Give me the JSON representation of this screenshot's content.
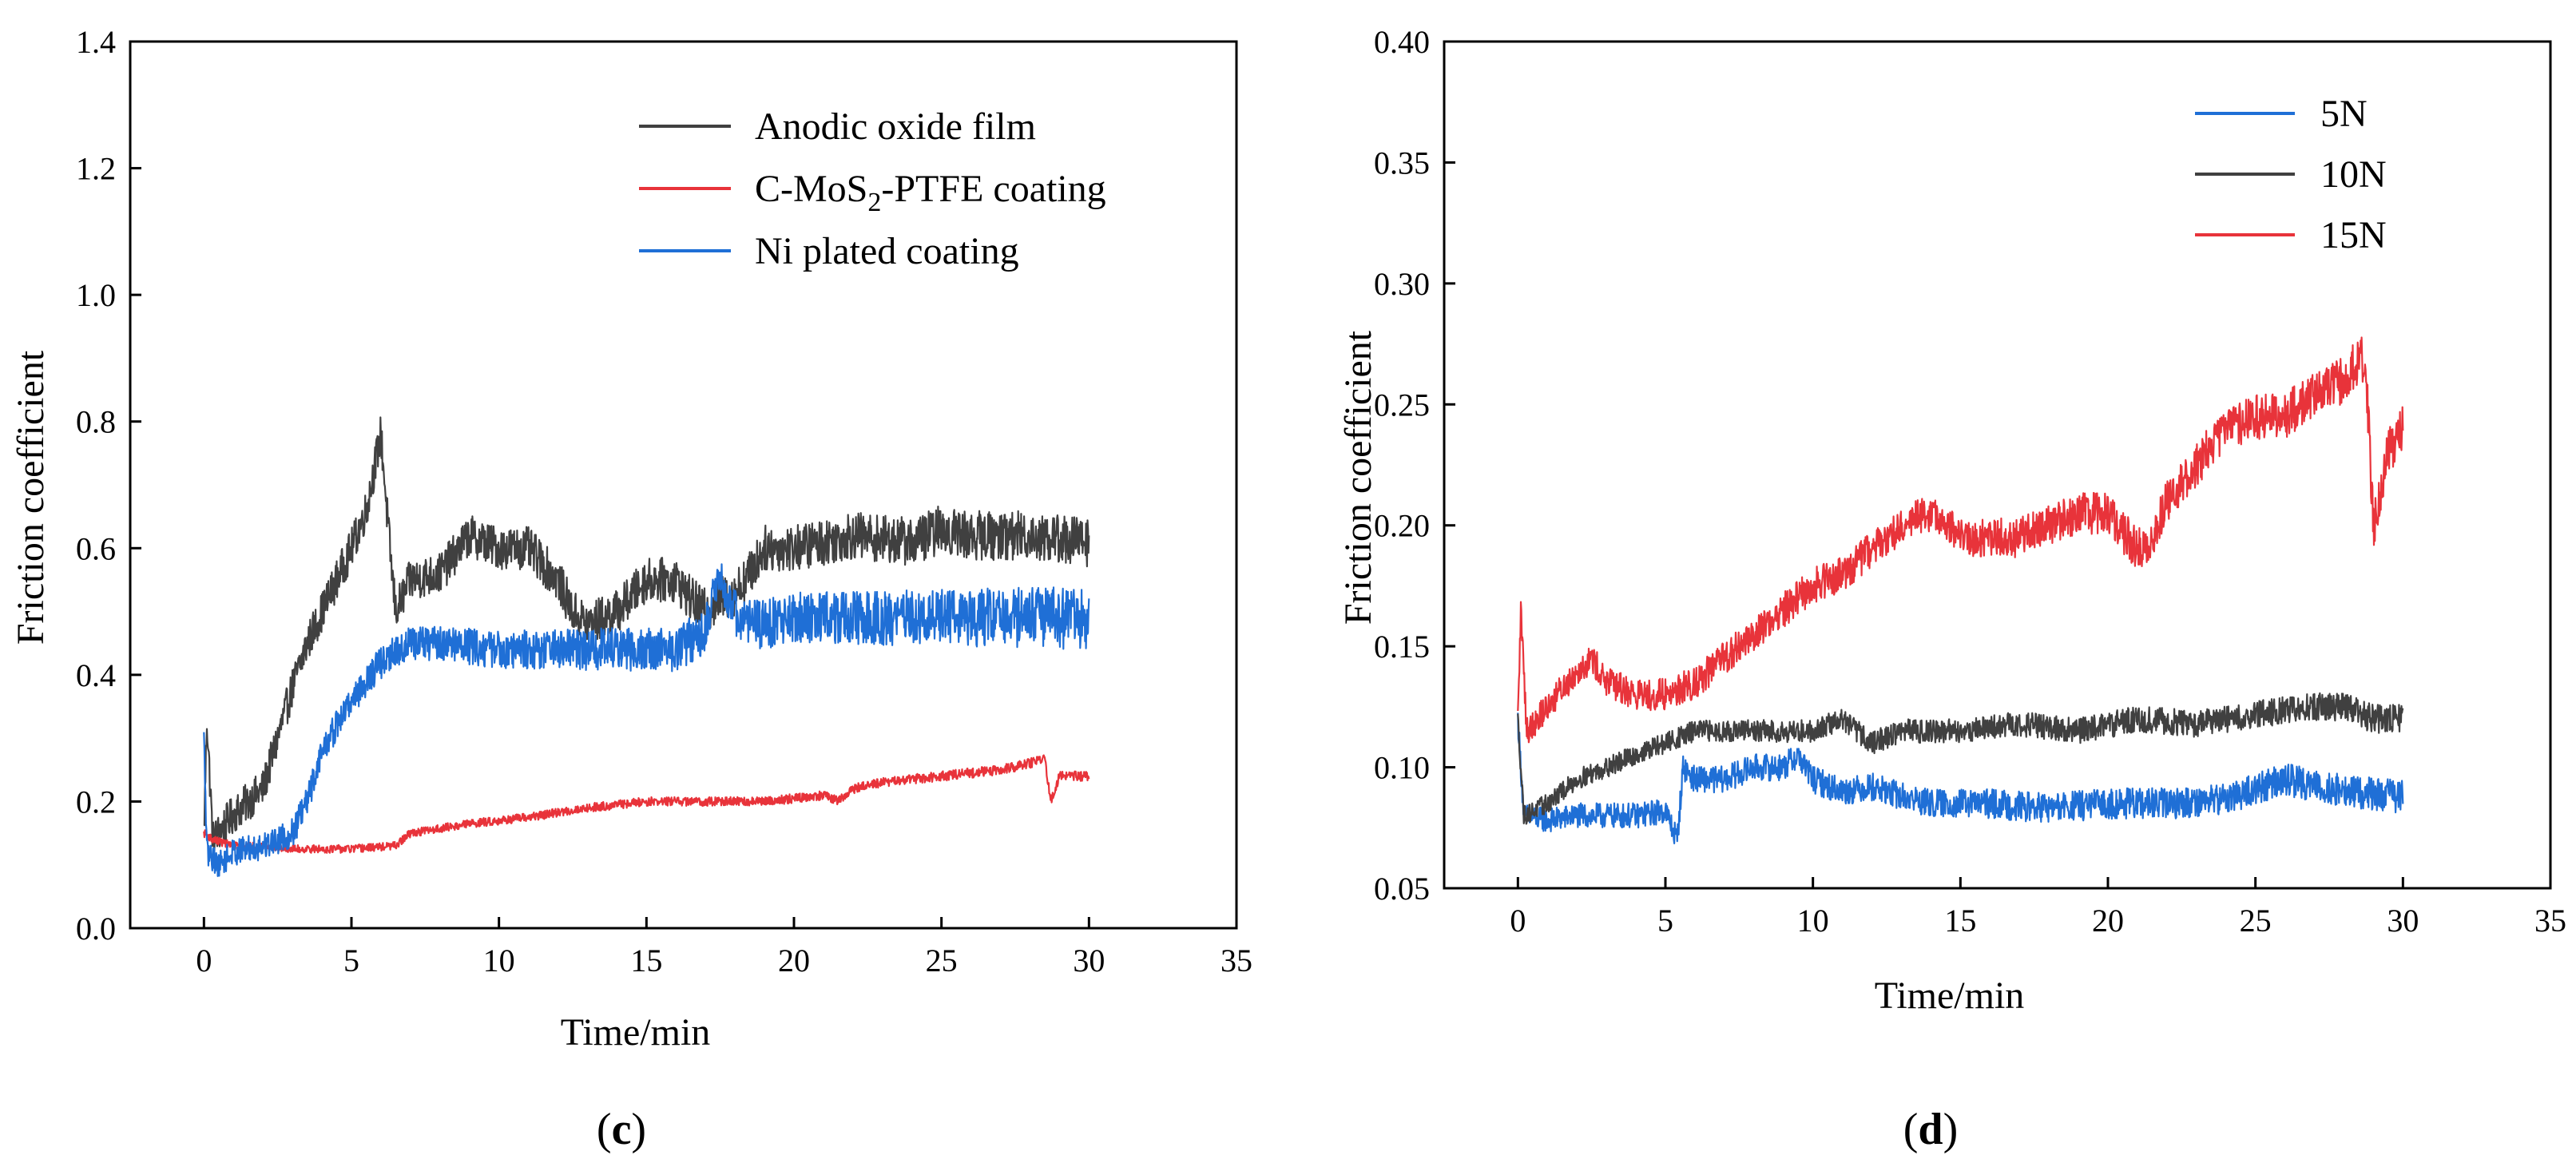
{
  "chart_data": [
    {
      "type": "line",
      "panel_label": {
        "open": "(",
        "letter": "c",
        "close": ")"
      },
      "xlabel": "Time/min",
      "ylabel": "Friction coefficient",
      "xlim": [
        -2.5,
        35
      ],
      "ylim": [
        0,
        1.4
      ],
      "xticks": [
        0,
        5,
        10,
        15,
        20,
        25,
        30,
        35
      ],
      "yticks": [
        0.0,
        0.2,
        0.4,
        0.6,
        0.8,
        1.0,
        1.2,
        1.4
      ],
      "xtick_labels": [
        "0",
        "5",
        "10",
        "15",
        "20",
        "25",
        "30",
        "35"
      ],
      "ytick_labels": [
        "0.0",
        "0.2",
        "0.4",
        "0.6",
        "0.8",
        "1.0",
        "1.2",
        "1.4"
      ],
      "grid": false,
      "legend": {
        "placement": "top-right",
        "entries": [
          {
            "text": "Anodic oxide film",
            "color": "#404040"
          },
          {
            "text_parts": [
              "C-MoS",
              "2",
              "-PTFE coating"
            ],
            "color": "#e8333a"
          },
          {
            "text": "Ni plated coating",
            "color": "#1f6fd6"
          }
        ]
      },
      "series": [
        {
          "name": "Anodic oxide film",
          "color": "#404040",
          "noise": [
            0.03,
            0.04
          ],
          "points": [
            [
              0,
              0.15
            ],
            [
              0.1,
              0.33
            ],
            [
              0.3,
              0.14
            ],
            [
              1,
              0.18
            ],
            [
              2,
              0.22
            ],
            [
              2.5,
              0.3
            ],
            [
              3,
              0.38
            ],
            [
              3.5,
              0.45
            ],
            [
              4,
              0.5
            ],
            [
              5,
              0.6
            ],
            [
              5.5,
              0.66
            ],
            [
              6,
              0.78
            ],
            [
              6.3,
              0.6
            ],
            [
              6.5,
              0.5
            ],
            [
              7,
              0.55
            ],
            [
              8,
              0.56
            ],
            [
              9,
              0.62
            ],
            [
              10,
              0.6
            ],
            [
              11,
              0.6
            ],
            [
              12,
              0.55
            ],
            [
              12.5,
              0.5
            ],
            [
              13,
              0.48
            ],
            [
              14,
              0.5
            ],
            [
              15,
              0.55
            ],
            [
              16,
              0.55
            ],
            [
              16.5,
              0.52
            ],
            [
              17,
              0.5
            ],
            [
              17.5,
              0.52
            ],
            [
              18,
              0.53
            ],
            [
              18.5,
              0.56
            ],
            [
              19,
              0.6
            ],
            [
              20,
              0.6
            ],
            [
              22,
              0.62
            ],
            [
              24,
              0.61
            ],
            [
              25,
              0.63
            ],
            [
              26,
              0.62
            ],
            [
              28,
              0.62
            ],
            [
              30,
              0.61
            ]
          ]
        },
        {
          "name": "C-MoS2-PTFE coating",
          "color": "#e8333a",
          "noise": [
            0.006,
            0.008
          ],
          "points": [
            [
              0,
              0.15
            ],
            [
              0.3,
              0.14
            ],
            [
              1,
              0.13
            ],
            [
              2,
              0.13
            ],
            [
              3,
              0.125
            ],
            [
              5,
              0.125
            ],
            [
              6.5,
              0.13
            ],
            [
              7,
              0.15
            ],
            [
              9,
              0.165
            ],
            [
              11,
              0.175
            ],
            [
              13,
              0.19
            ],
            [
              15,
              0.2
            ],
            [
              16,
              0.2
            ],
            [
              18,
              0.2
            ],
            [
              19,
              0.2
            ],
            [
              21,
              0.21
            ],
            [
              21.5,
              0.2
            ],
            [
              22,
              0.22
            ],
            [
              23,
              0.23
            ],
            [
              25,
              0.24
            ],
            [
              27,
              0.25
            ],
            [
              28,
              0.26
            ],
            [
              28.5,
              0.27
            ],
            [
              28.7,
              0.2
            ],
            [
              29,
              0.24
            ],
            [
              30,
              0.24
            ]
          ]
        },
        {
          "name": "Ni plated coating",
          "color": "#1f6fd6",
          "noise": [
            0.02,
            0.05
          ],
          "points": [
            [
              0,
              0.3
            ],
            [
              0.1,
              0.12
            ],
            [
              0.5,
              0.1
            ],
            [
              1,
              0.12
            ],
            [
              2,
              0.13
            ],
            [
              3,
              0.15
            ],
            [
              3.5,
              0.2
            ],
            [
              4,
              0.28
            ],
            [
              5,
              0.36
            ],
            [
              6,
              0.42
            ],
            [
              7,
              0.45
            ],
            [
              8,
              0.45
            ],
            [
              10,
              0.44
            ],
            [
              12,
              0.44
            ],
            [
              14,
              0.44
            ],
            [
              16,
              0.44
            ],
            [
              17,
              0.47
            ],
            [
              17.5,
              0.56
            ],
            [
              18,
              0.5
            ],
            [
              18.5,
              0.48
            ],
            [
              19,
              0.48
            ],
            [
              20,
              0.49
            ],
            [
              22,
              0.49
            ],
            [
              24,
              0.49
            ],
            [
              26,
              0.49
            ],
            [
              28,
              0.49
            ],
            [
              30,
              0.49
            ]
          ]
        }
      ]
    },
    {
      "type": "line",
      "panel_label": {
        "open": "(",
        "letter": "d",
        "close": ")"
      },
      "xlabel": "Time/min",
      "ylabel": "Friction coefficient",
      "xlim": [
        -2.5,
        35
      ],
      "ylim": [
        0.05,
        0.4
      ],
      "xticks": [
        0,
        5,
        10,
        15,
        20,
        25,
        30,
        35
      ],
      "yticks": [
        0.05,
        0.1,
        0.15,
        0.2,
        0.25,
        0.3,
        0.35,
        0.4
      ],
      "xtick_labels": [
        "0",
        "5",
        "10",
        "15",
        "20",
        "25",
        "30",
        "35"
      ],
      "ytick_labels": [
        "0.05",
        "0.10",
        "0.15",
        "0.20",
        "0.25",
        "0.30",
        "0.35",
        "0.40"
      ],
      "grid": false,
      "legend": {
        "placement": "top-right",
        "entries": [
          {
            "text": "5N",
            "color": "#1f6fd6"
          },
          {
            "text": "10N",
            "color": "#404040"
          },
          {
            "text": "15N",
            "color": "#e8333a"
          }
        ]
      },
      "series": [
        {
          "name": "5N",
          "color": "#1f6fd6",
          "noise": [
            0.005,
            0.007
          ],
          "points": [
            [
              0,
              0.12
            ],
            [
              0.2,
              0.08
            ],
            [
              1,
              0.078
            ],
            [
              2,
              0.08
            ],
            [
              3,
              0.08
            ],
            [
              4,
              0.08
            ],
            [
              5,
              0.082
            ],
            [
              5.4,
              0.07
            ],
            [
              5.6,
              0.1
            ],
            [
              6,
              0.095
            ],
            [
              7,
              0.095
            ],
            [
              8,
              0.1
            ],
            [
              9,
              0.1
            ],
            [
              9.5,
              0.105
            ],
            [
              10,
              0.095
            ],
            [
              11,
              0.09
            ],
            [
              12,
              0.092
            ],
            [
              13,
              0.088
            ],
            [
              14,
              0.085
            ],
            [
              16,
              0.085
            ],
            [
              18,
              0.083
            ],
            [
              20,
              0.085
            ],
            [
              22,
              0.085
            ],
            [
              24,
              0.087
            ],
            [
              26,
              0.095
            ],
            [
              28,
              0.09
            ],
            [
              30,
              0.088
            ]
          ]
        },
        {
          "name": "10N",
          "color": "#404040",
          "noise": [
            0.004,
            0.006
          ],
          "points": [
            [
              0,
              0.12
            ],
            [
              0.2,
              0.08
            ],
            [
              1,
              0.085
            ],
            [
              2,
              0.095
            ],
            [
              3,
              0.1
            ],
            [
              4,
              0.105
            ],
            [
              5,
              0.11
            ],
            [
              6,
              0.115
            ],
            [
              8,
              0.115
            ],
            [
              10,
              0.115
            ],
            [
              11,
              0.12
            ],
            [
              12,
              0.11
            ],
            [
              13,
              0.115
            ],
            [
              15,
              0.115
            ],
            [
              17,
              0.118
            ],
            [
              19,
              0.115
            ],
            [
              21,
              0.12
            ],
            [
              23,
              0.118
            ],
            [
              25,
              0.122
            ],
            [
              27,
              0.125
            ],
            [
              28,
              0.125
            ],
            [
              29,
              0.12
            ],
            [
              30,
              0.12
            ]
          ]
        },
        {
          "name": "15N",
          "color": "#e8333a",
          "noise": [
            0.006,
            0.01
          ],
          "points": [
            [
              0,
              0.12
            ],
            [
              0.1,
              0.165
            ],
            [
              0.3,
              0.115
            ],
            [
              1,
              0.125
            ],
            [
              2,
              0.14
            ],
            [
              2.5,
              0.145
            ],
            [
              3,
              0.135
            ],
            [
              4,
              0.13
            ],
            [
              5,
              0.13
            ],
            [
              6,
              0.135
            ],
            [
              6.5,
              0.14
            ],
            [
              7,
              0.145
            ],
            [
              8,
              0.155
            ],
            [
              9,
              0.165
            ],
            [
              10,
              0.175
            ],
            [
              11,
              0.18
            ],
            [
              12,
              0.19
            ],
            [
              13,
              0.2
            ],
            [
              14,
              0.205
            ],
            [
              15,
              0.195
            ],
            [
              16,
              0.195
            ],
            [
              17,
              0.195
            ],
            [
              18,
              0.2
            ],
            [
              19,
              0.205
            ],
            [
              20,
              0.205
            ],
            [
              21,
              0.19
            ],
            [
              21.5,
              0.195
            ],
            [
              22,
              0.21
            ],
            [
              23,
              0.225
            ],
            [
              24,
              0.24
            ],
            [
              25,
              0.245
            ],
            [
              26,
              0.245
            ],
            [
              27,
              0.255
            ],
            [
              28,
              0.26
            ],
            [
              28.6,
              0.27
            ],
            [
              28.8,
              0.25
            ],
            [
              29,
              0.2
            ],
            [
              29.5,
              0.23
            ],
            [
              30,
              0.24
            ]
          ]
        }
      ]
    }
  ]
}
